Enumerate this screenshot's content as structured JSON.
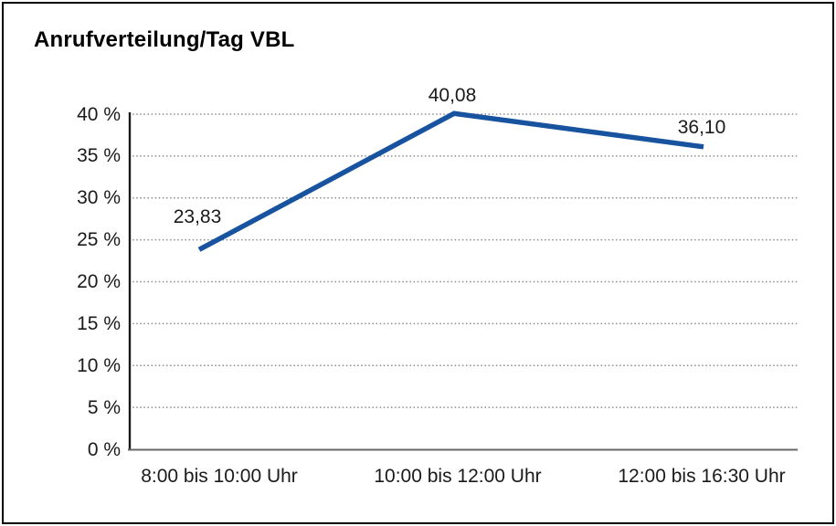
{
  "chart_data": {
    "type": "line",
    "title": "Anrufverteilung/Tag VBL",
    "categories": [
      "8:00 bis 10:00 Uhr",
      "10:00 bis 12:00 Uhr",
      "12:00 bis 16:30 Uhr"
    ],
    "values": [
      23.83,
      40.08,
      36.1
    ],
    "value_labels": [
      "23,83",
      "40,08",
      "36,10"
    ],
    "ytick_values": [
      0,
      5,
      10,
      15,
      20,
      25,
      30,
      35,
      40
    ],
    "ytick_labels": [
      "0 %",
      "5 %",
      "10 %",
      "15 %",
      "20 %",
      "25 %",
      "30 %",
      "35 %",
      "40 %"
    ],
    "xlabel": "",
    "ylabel": "",
    "ylim": [
      0,
      40
    ],
    "grid": "horizontal-dotted",
    "legend": "none",
    "line_color": "#17539e",
    "grid_color": "#8c8c8c",
    "y_axis_color": "#1a1a1a",
    "x_axis_color": "#666666"
  }
}
